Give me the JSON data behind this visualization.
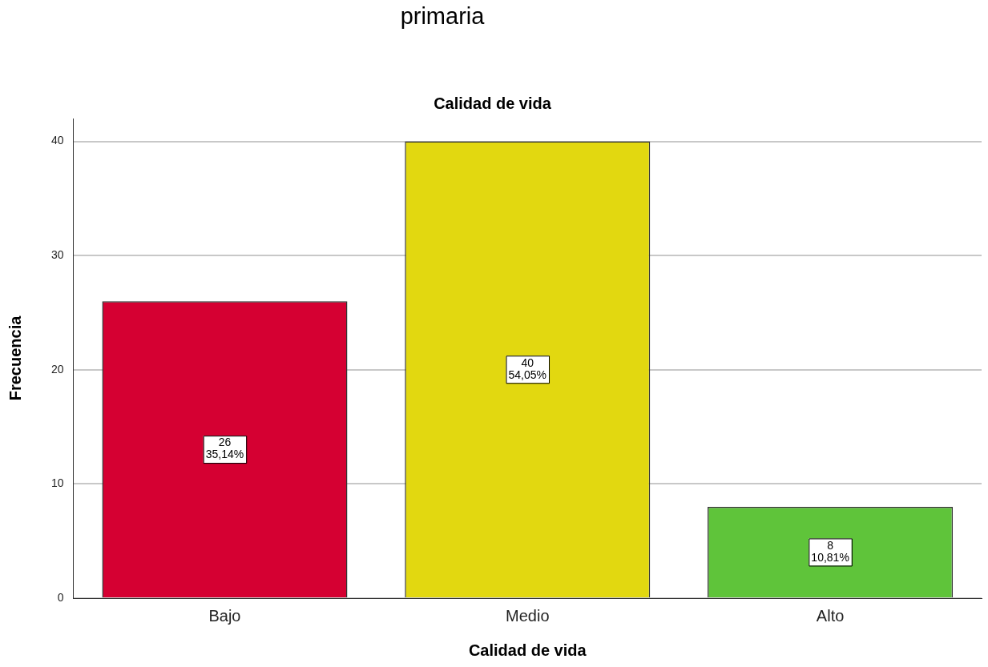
{
  "chart_data": {
    "type": "bar",
    "title": "Calidad de vida",
    "xlabel": "Calidad de vida",
    "ylabel": "Frecuencia",
    "annotations": [
      "primaria"
    ],
    "categories": [
      "Bajo",
      "Medio",
      "Alto"
    ],
    "values": [
      26,
      40,
      8
    ],
    "colors": [
      "#d50032",
      "#e2d810",
      "#5fc43a"
    ],
    "value_labels": [
      "26\n35,14%",
      "40\n54,05%",
      "8\n10,81%"
    ],
    "ylim": [
      0,
      42
    ],
    "yticks": [
      0,
      10,
      20,
      30,
      40
    ],
    "grid": "y",
    "legend": false
  }
}
